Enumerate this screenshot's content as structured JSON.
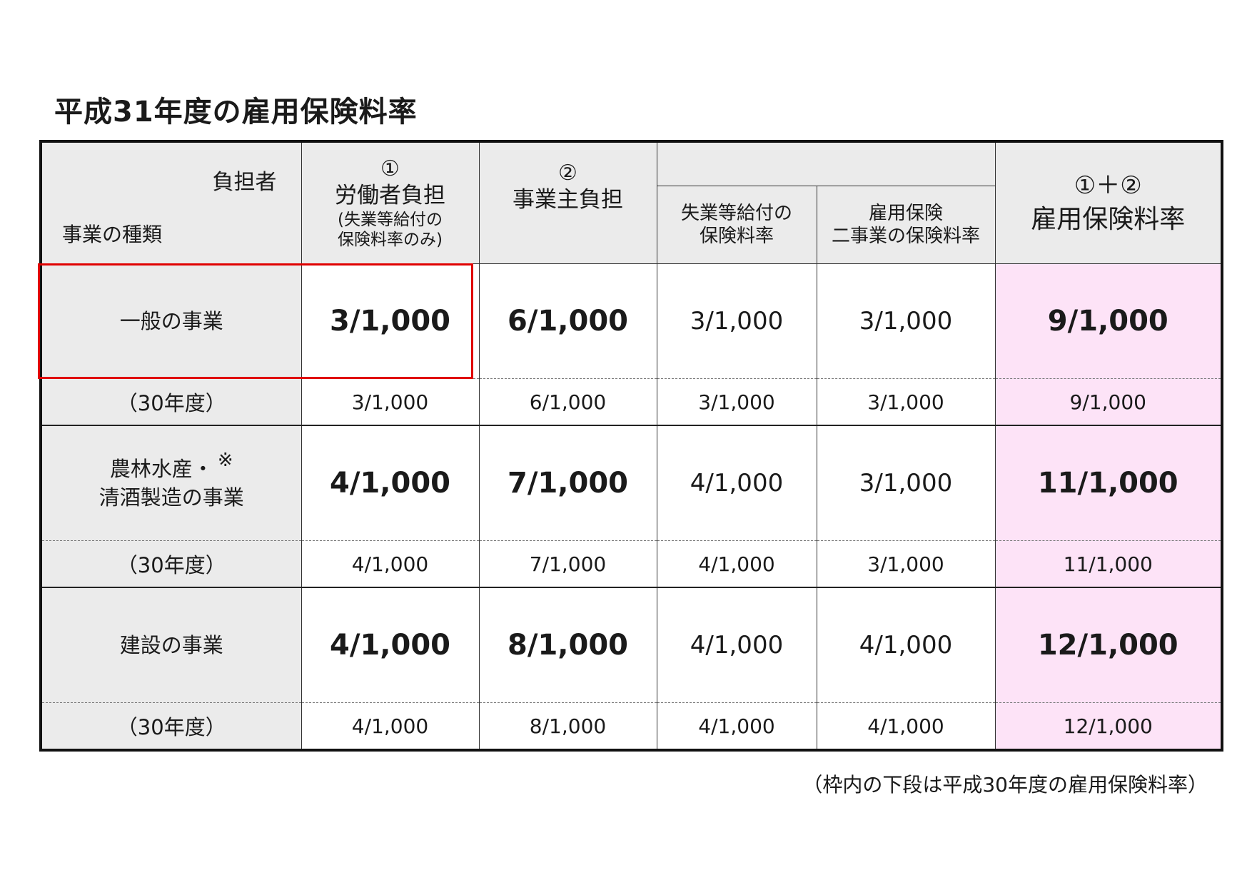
{
  "title": "平成31年度の雇用保険料率",
  "header": {
    "burden_label": "負担者",
    "business_type_label": "事業の種類",
    "col1": {
      "num": "①",
      "label": "労働者負担",
      "note1": "(失業等給付の",
      "note2": "保険料率のみ)"
    },
    "col2": {
      "num": "②",
      "label": "事業主負担"
    },
    "col2a": {
      "line1": "失業等給付の",
      "line2": "保険料率"
    },
    "col2b": {
      "line1": "雇用保険",
      "line2": "二事業の保険料率"
    },
    "col3": {
      "num": "①＋②",
      "label": "雇用保険料率"
    }
  },
  "rows": [
    {
      "label_line1": "一般の事業",
      "label_line2": "",
      "mark": "",
      "current": [
        "3/1,000",
        "6/1,000",
        "3/1,000",
        "3/1,000",
        "9/1,000"
      ],
      "prev_label": "（30年度）",
      "prev": [
        "3/1,000",
        "6/1,000",
        "3/1,000",
        "3/1,000",
        "9/1,000"
      ]
    },
    {
      "label_line1": "農林水産・",
      "label_line2": "清酒製造の事業",
      "mark": "※",
      "current": [
        "4/1,000",
        "7/1,000",
        "4/1,000",
        "3/1,000",
        "11/1,000"
      ],
      "prev_label": "（30年度）",
      "prev": [
        "4/1,000",
        "7/1,000",
        "4/1,000",
        "3/1,000",
        "11/1,000"
      ]
    },
    {
      "label_line1": "建設の事業",
      "label_line2": "",
      "mark": "",
      "current": [
        "4/1,000",
        "8/1,000",
        "4/1,000",
        "4/1,000",
        "12/1,000"
      ],
      "prev_label": "（30年度）",
      "prev": [
        "4/1,000",
        "8/1,000",
        "4/1,000",
        "4/1,000",
        "12/1,000"
      ]
    }
  ],
  "footnote": "（枠内の下段は平成30年度の雇用保険料率）",
  "colors": {
    "highlight_border": "#e00000",
    "sum_column_bg": "#fde3f7",
    "header_bg": "#ebebeb"
  }
}
